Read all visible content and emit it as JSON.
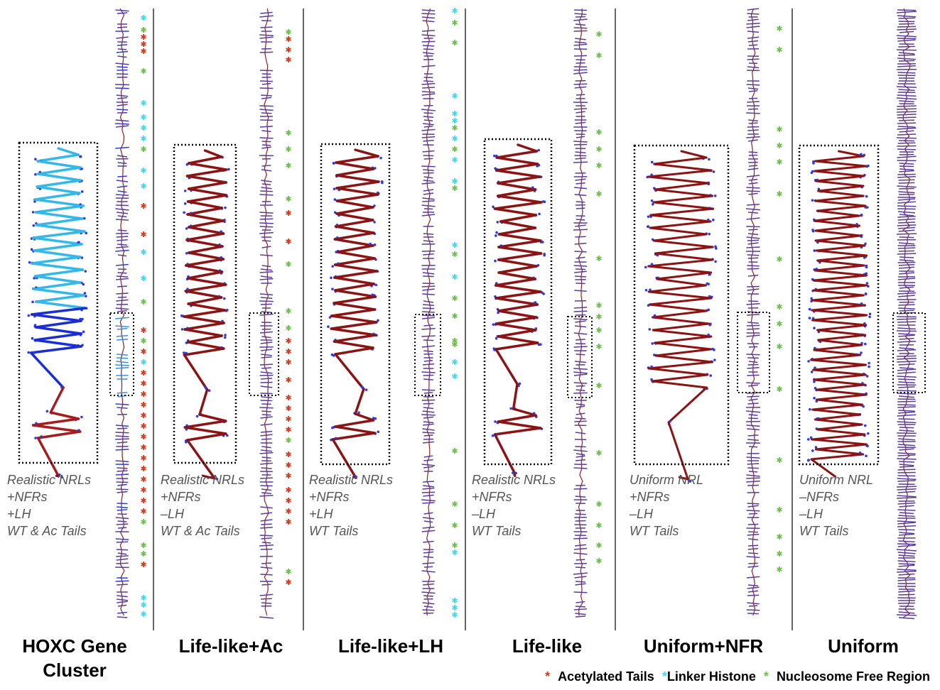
{
  "panels": [
    {
      "title": "HOXC Gene Cluster",
      "caption": [
        "Realistic NRLs",
        "+NFRs",
        "+LH",
        "WT & Ac Tails"
      ]
    },
    {
      "title": "Life-like+Ac",
      "caption": [
        "Realistic NRLs",
        "+NFRs",
        "–LH",
        "WT & Ac Tails"
      ]
    },
    {
      "title": "Life-like+LH",
      "caption": [
        "Realistic NRLs",
        "+NFRs",
        "+LH",
        "WT Tails"
      ]
    },
    {
      "title": "Life-like",
      "caption": [
        "Realistic NRLs",
        "+NFRs",
        "–LH",
        "WT Tails"
      ]
    },
    {
      "title": "Uniform+NFR",
      "caption": [
        "Uniform NRL",
        "+NFRs",
        "–LH",
        "WT Tails"
      ]
    },
    {
      "title": "Uniform",
      "caption": [
        "Uniform NRL",
        "–NFRs",
        "–LH",
        "WT Tails"
      ]
    }
  ],
  "legend": [
    {
      "symbol": "*",
      "label": "Acetylated Tails"
    },
    {
      "symbol": "*",
      "label": "Linker Histone"
    },
    {
      "symbol": "*",
      "label": "Nucleosome Free Region"
    }
  ]
}
